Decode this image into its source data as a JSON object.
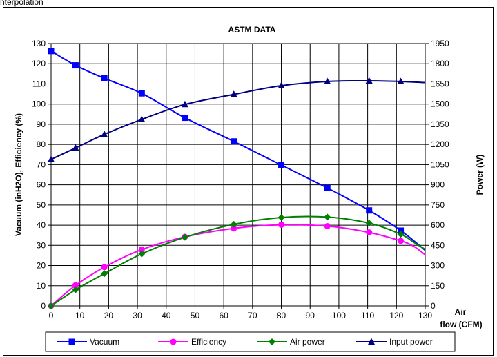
{
  "caption": "nterpolation",
  "chart_data": {
    "type": "line",
    "title": "ASTM DATA",
    "xlabel": "Air flow (CFM)",
    "xlabel_lines": [
      "Air",
      "flow (CFM)"
    ],
    "ylabel": "Vacuum (inH2O), Efficiency (%)",
    "y2label": "Power (W)",
    "xlim": [
      0,
      130
    ],
    "ylim": [
      0,
      130
    ],
    "y2lim": [
      0,
      1950
    ],
    "x_ticks": [
      "0",
      "10",
      "20",
      "30",
      "40",
      "50",
      "60",
      "70",
      "80",
      "90",
      "100",
      "110",
      "120",
      "130"
    ],
    "y_ticks": [
      "0",
      "10",
      "20",
      "30",
      "40",
      "50",
      "60",
      "70",
      "80",
      "90",
      "100",
      "110",
      "120",
      "130"
    ],
    "y2_ticks": [
      "0",
      "150",
      "300",
      "450",
      "600",
      "750",
      "900",
      "1050",
      "1200",
      "1350",
      "1500",
      "1650",
      "1800",
      "1950"
    ],
    "grid": true,
    "legend_position": "bottom",
    "series": [
      {
        "name": "Vacuum",
        "color": "#0000ff",
        "marker": "square",
        "axis": "left",
        "points": [
          [
            0,
            126.3
          ],
          [
            8.5,
            119.2
          ],
          [
            18.5,
            112.8
          ],
          [
            31.5,
            105.3
          ],
          [
            46.5,
            93.2
          ],
          [
            63.5,
            81.5
          ],
          [
            80,
            69.8
          ],
          [
            96,
            58.4
          ],
          [
            110.5,
            47.3
          ],
          [
            121.5,
            37.3
          ]
        ],
        "curve": [
          [
            0,
            126.3
          ],
          [
            8.5,
            119.2
          ],
          [
            18.5,
            112.8
          ],
          [
            31.5,
            105.3
          ],
          [
            46.5,
            93.2
          ],
          [
            63.5,
            81.5
          ],
          [
            80,
            69.8
          ],
          [
            96,
            58.4
          ],
          [
            110.5,
            47.3
          ],
          [
            121.5,
            37.3
          ],
          [
            130,
            27.5
          ]
        ]
      },
      {
        "name": "Efficiency",
        "color": "#ff00ff",
        "marker": "circle",
        "axis": "left",
        "points": [
          [
            0,
            0
          ],
          [
            8.5,
            10.2
          ],
          [
            18.5,
            19.2
          ],
          [
            31.5,
            27.9
          ],
          [
            46.5,
            34.2
          ],
          [
            63.5,
            38.4
          ],
          [
            80,
            40.2
          ],
          [
            96,
            39.5
          ],
          [
            110.5,
            36.4
          ],
          [
            121.5,
            32.2
          ]
        ],
        "curve": [
          [
            0,
            0
          ],
          [
            8.5,
            10.2
          ],
          [
            18.5,
            19.2
          ],
          [
            31.5,
            27.9
          ],
          [
            46.5,
            34.2
          ],
          [
            63.5,
            38.4
          ],
          [
            80,
            40.2
          ],
          [
            96,
            39.5
          ],
          [
            110.5,
            36.4
          ],
          [
            121.5,
            32.2
          ],
          [
            126,
            29.5
          ],
          [
            130,
            25.3
          ]
        ]
      },
      {
        "name": "Air power",
        "color": "#008000",
        "marker": "diamond",
        "axis": "left",
        "points": [
          [
            0,
            0
          ],
          [
            8.5,
            8
          ],
          [
            18.5,
            16
          ],
          [
            31.5,
            25.8
          ],
          [
            46.5,
            34
          ],
          [
            63.5,
            40.4
          ],
          [
            80,
            43.8
          ],
          [
            96,
            44
          ],
          [
            110.5,
            41
          ],
          [
            121.5,
            35.5
          ]
        ],
        "curve": [
          [
            0,
            0
          ],
          [
            8.5,
            8
          ],
          [
            18.5,
            16
          ],
          [
            31.5,
            25.8
          ],
          [
            46.5,
            34
          ],
          [
            63.5,
            40.4
          ],
          [
            80,
            43.8
          ],
          [
            96,
            44
          ],
          [
            110.5,
            41
          ],
          [
            121.5,
            35.5
          ],
          [
            126,
            31.5
          ],
          [
            130,
            28
          ]
        ]
      },
      {
        "name": "Input power",
        "color": "#000080",
        "marker": "triangle",
        "axis": "right",
        "points": [
          [
            0,
            1089
          ],
          [
            8.5,
            1174
          ],
          [
            18.5,
            1275
          ],
          [
            31.5,
            1386
          ],
          [
            46.5,
            1497
          ],
          [
            63.5,
            1572
          ],
          [
            80,
            1637
          ],
          [
            96,
            1668
          ],
          [
            110.5,
            1673
          ],
          [
            121.5,
            1668
          ]
        ],
        "curve": [
          [
            0,
            1089
          ],
          [
            8.5,
            1174
          ],
          [
            18.5,
            1275
          ],
          [
            31.5,
            1386
          ],
          [
            46.5,
            1497
          ],
          [
            63.5,
            1572
          ],
          [
            80,
            1637
          ],
          [
            96,
            1668
          ],
          [
            110.5,
            1673
          ],
          [
            121.5,
            1668
          ],
          [
            130,
            1660
          ]
        ]
      }
    ]
  }
}
